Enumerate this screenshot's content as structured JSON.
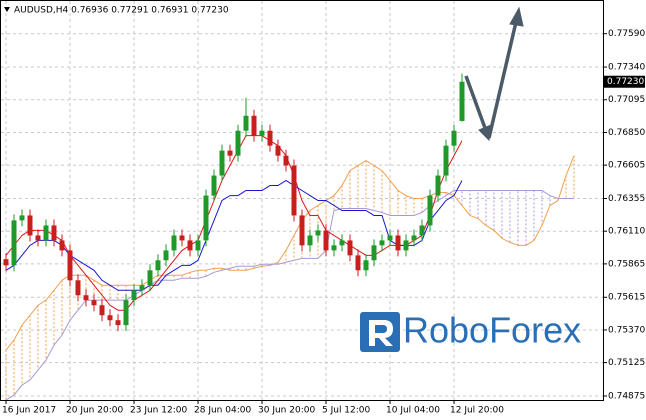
{
  "chart_data": {
    "type": "candlestick",
    "title": "AUDUSD,H4  0.76936 0.77291 0.76931 0.77230",
    "categories": [
      "16 Jun 2017",
      null,
      null,
      null,
      null,
      null,
      null,
      null,
      "20 Jun 20:00",
      null,
      null,
      null,
      null,
      null,
      null,
      null,
      "23 Jun 12:00",
      null,
      null,
      null,
      null,
      null,
      null,
      null,
      "28 Jun 04:00",
      null,
      null,
      null,
      null,
      null,
      null,
      null,
      "30 Jun 20:00",
      null,
      null,
      null,
      null,
      null,
      null,
      null,
      "5 Jul 12:00",
      null,
      null,
      null,
      null,
      null,
      null,
      null,
      "10 Jul 04:00",
      null,
      null,
      null,
      null,
      null,
      null,
      null,
      "12 Jul 20:00",
      null
    ],
    "open": [
      0.759,
      0.75854,
      0.76191,
      0.76228,
      0.76078,
      0.76041,
      0.76153,
      0.76041,
      0.75966,
      0.75742,
      0.7563,
      0.75593,
      0.75555,
      0.7548,
      0.75443,
      0.75406,
      0.75593,
      0.75667,
      0.75705,
      0.75817,
      0.75892,
      0.75966,
      0.76078,
      0.76041,
      0.75966,
      0.76041,
      0.76377,
      0.76527,
      0.76714,
      0.76676,
      0.76863,
      0.76975,
      0.76826,
      0.76863,
      0.76751,
      0.76676,
      0.76602,
      0.76228,
      0.76004,
      0.76078,
      0.76116,
      0.75966,
      0.76004,
      0.76041,
      0.75929,
      0.75817,
      0.75892,
      0.76004,
      0.76041,
      0.76078,
      0.75966,
      0.76041,
      0.76078,
      0.76153,
      0.76377,
      0.76527,
      0.76751,
      0.76936
    ],
    "high": [
      0.75945,
      0.76236,
      0.76273,
      0.76273,
      0.76123,
      0.76198,
      0.76198,
      0.76086,
      0.76011,
      0.75787,
      0.75675,
      0.75638,
      0.756,
      0.75525,
      0.75488,
      0.75638,
      0.75712,
      0.7575,
      0.75862,
      0.75937,
      0.76011,
      0.76123,
      0.76123,
      0.76086,
      0.76086,
      0.76422,
      0.76572,
      0.76759,
      0.76759,
      0.76908,
      0.7711,
      0.7702,
      0.76908,
      0.76908,
      0.76796,
      0.76721,
      0.76647,
      0.76273,
      0.76123,
      0.76161,
      0.76161,
      0.76049,
      0.76086,
      0.76086,
      0.75974,
      0.75937,
      0.76049,
      0.76086,
      0.76123,
      0.76123,
      0.76086,
      0.76123,
      0.76198,
      0.76422,
      0.76572,
      0.76796,
      0.76908,
      0.77291
    ],
    "low": [
      0.75809,
      0.75809,
      0.76146,
      0.76033,
      0.75996,
      0.75996,
      0.75996,
      0.75921,
      0.75697,
      0.75585,
      0.75548,
      0.7551,
      0.75435,
      0.75398,
      0.75361,
      0.75361,
      0.75548,
      0.75622,
      0.7566,
      0.75772,
      0.75847,
      0.75921,
      0.75996,
      0.75921,
      0.75921,
      0.75996,
      0.76332,
      0.76482,
      0.76631,
      0.76631,
      0.76818,
      0.76781,
      0.76781,
      0.76706,
      0.76631,
      0.76557,
      0.76183,
      0.75959,
      0.75959,
      0.76033,
      0.75921,
      0.75921,
      0.75959,
      0.75884,
      0.75772,
      0.75772,
      0.75847,
      0.75959,
      0.75996,
      0.75921,
      0.75921,
      0.75996,
      0.76033,
      0.76108,
      0.76332,
      0.76482,
      0.76706,
      0.76931
    ],
    "close": [
      0.75854,
      0.76191,
      0.76228,
      0.76078,
      0.76041,
      0.76153,
      0.76041,
      0.75966,
      0.75742,
      0.7563,
      0.75593,
      0.75555,
      0.7548,
      0.75443,
      0.75406,
      0.75593,
      0.75667,
      0.75705,
      0.75817,
      0.75892,
      0.75966,
      0.76078,
      0.76041,
      0.75966,
      0.76041,
      0.76377,
      0.76527,
      0.76714,
      0.76676,
      0.76863,
      0.76975,
      0.76826,
      0.76863,
      0.76751,
      0.76676,
      0.76602,
      0.76228,
      0.76004,
      0.76078,
      0.76116,
      0.75966,
      0.76004,
      0.76041,
      0.75929,
      0.75817,
      0.75892,
      0.76004,
      0.76041,
      0.76078,
      0.75966,
      0.76041,
      0.76078,
      0.76153,
      0.76377,
      0.76527,
      0.76751,
      0.76863,
      0.7723
    ],
    "up_color": "#1f9a2a",
    "down_color": "#c81e1e",
    "lines": [
      {
        "color": "#e01818",
        "values": [
          0.75929,
          0.76004,
          0.76078,
          0.76116,
          0.76116,
          0.76116,
          0.76078,
          0.76041,
          0.75929,
          0.75854,
          0.7578,
          0.75705,
          0.7563,
          0.75555,
          0.75518,
          0.75518,
          0.75593,
          0.7563,
          0.75667,
          0.75742,
          0.75817,
          0.75892,
          0.75966,
          0.76004,
          0.76041,
          0.76191,
          0.7634,
          0.7649,
          0.76602,
          0.76714,
          0.76826,
          0.76826,
          0.76826,
          0.76788,
          0.76751,
          0.76676,
          0.76527,
          0.7634,
          0.76228,
          0.76228,
          0.76116,
          0.76078,
          0.76041,
          0.76004,
          0.75966,
          0.75929,
          0.75929,
          0.75966,
          0.76004,
          0.76004,
          0.76004,
          0.76041,
          0.76078,
          0.76228,
          0.76415,
          0.76564,
          0.76676,
          0.76788
        ]
      },
      {
        "color": "#1818d0",
        "values": [
          0.75817,
          0.75854,
          0.75929,
          0.76004,
          0.76041,
          0.76041,
          0.76041,
          0.76004,
          0.75929,
          0.75892,
          0.75854,
          0.75817,
          0.75742,
          0.75705,
          0.75667,
          0.75667,
          0.75667,
          0.75667,
          0.75705,
          0.75705,
          0.7578,
          0.75817,
          0.75854,
          0.75854,
          0.75892,
          0.76041,
          0.76191,
          0.7634,
          0.76377,
          0.76377,
          0.76415,
          0.76415,
          0.76415,
          0.76452,
          0.76452,
          0.7649,
          0.76452,
          0.76415,
          0.76377,
          0.7634,
          0.7634,
          0.76303,
          0.76265,
          0.76265,
          0.76265,
          0.76265,
          0.76228,
          0.76228,
          0.76041,
          0.76004,
          0.76004,
          0.76004,
          0.76041,
          0.76191,
          0.76265,
          0.7634,
          0.76377,
          0.7649
        ]
      }
    ],
    "cloud": {
      "span_a": {
        "color": "#f0a050",
        "values": [
          0.75219,
          0.75294,
          0.75406,
          0.7548,
          0.75555,
          0.75593,
          0.75667,
          0.75742,
          0.7578,
          0.7578,
          0.7578,
          0.75742,
          0.75705,
          0.75705,
          0.75705,
          0.75705,
          0.75705,
          0.75705,
          0.75742,
          0.7578,
          0.7578,
          0.7578,
          0.7578,
          0.75802,
          0.75817,
          0.75817,
          0.75832,
          0.75832,
          0.75817,
          0.75817,
          0.75817,
          0.75832,
          0.75847,
          0.75854,
          0.75877,
          0.75966,
          0.76078,
          0.76191,
          0.76265,
          0.76303,
          0.7634,
          0.76377,
          0.76452,
          0.76564,
          0.76602,
          0.76639,
          0.76602,
          0.76564,
          0.7649,
          0.76415,
          0.76377,
          0.76355,
          0.76355,
          0.76377,
          0.764,
          0.764,
          0.76377,
          0.76303,
          0.76228,
          0.76205,
          0.76153,
          0.76116,
          0.76056,
          0.76026,
          0.76004,
          0.76004,
          0.76041,
          0.76153,
          0.76303,
          0.7634,
          0.76527,
          0.76676
        ]
      },
      "span_b": {
        "color": "#a898d8",
        "values": [
          0.74845,
          0.74882,
          0.74957,
          0.74995,
          0.75069,
          0.75144,
          0.75256,
          0.75331,
          0.75443,
          0.75518,
          0.75593,
          0.75593,
          0.75593,
          0.75593,
          0.75593,
          0.75593,
          0.7563,
          0.75667,
          0.75705,
          0.75742,
          0.75742,
          0.75742,
          0.75757,
          0.75757,
          0.75757,
          0.75772,
          0.75802,
          0.75817,
          0.75832,
          0.75847,
          0.75847,
          0.75847,
          0.75862,
          0.75862,
          0.75862,
          0.75877,
          0.75892,
          0.75906,
          0.75906,
          0.75906,
          0.75966,
          0.76265,
          0.7628,
          0.7628,
          0.7628,
          0.7628,
          0.76265,
          0.7625,
          0.76228,
          0.76228,
          0.76228,
          0.76228,
          0.7625,
          0.76303,
          0.7634,
          0.76377,
          0.76415,
          0.76415,
          0.76415,
          0.76415,
          0.76415,
          0.76415,
          0.76415,
          0.76415,
          0.76415,
          0.76415,
          0.76415,
          0.76415,
          0.76377,
          0.76355,
          0.76355,
          0.76355
        ]
      }
    },
    "current_price": {
      "value": 0.7723,
      "label": "0.77230"
    },
    "ylim": [
      0.74845,
      0.77835
    ],
    "yticks": [
      {
        "value": 0.7759,
        "label": "0.77590"
      },
      {
        "value": 0.7734,
        "label": "0.77340"
      },
      {
        "value": 0.77095,
        "label": "0.77095"
      },
      {
        "value": 0.7685,
        "label": "0.76850"
      },
      {
        "value": 0.76605,
        "label": "0.76605"
      },
      {
        "value": 0.76355,
        "label": "0.76355"
      },
      {
        "value": 0.7611,
        "label": "0.76110"
      },
      {
        "value": 0.75865,
        "label": "0.75865"
      },
      {
        "value": 0.75615,
        "label": "0.75615"
      },
      {
        "value": 0.7537,
        "label": "0.75370"
      },
      {
        "value": 0.75125,
        "label": "0.75125"
      },
      {
        "value": 0.74875,
        "label": "0.74875"
      }
    ],
    "grid": true,
    "brand": "RoboForex"
  }
}
